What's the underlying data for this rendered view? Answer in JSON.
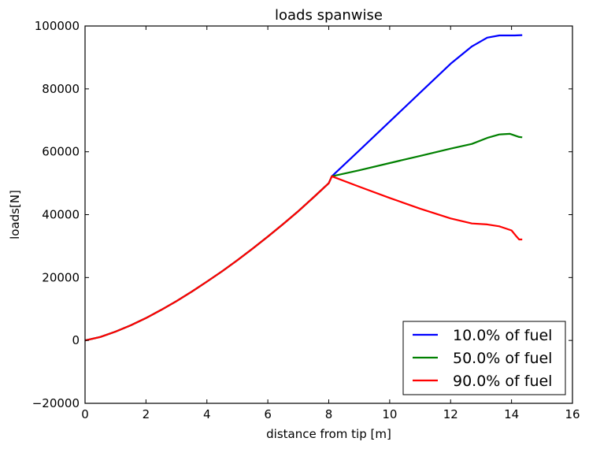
{
  "chart_data": {
    "type": "line",
    "title": "loads spanwise",
    "xlabel": "distance from tip [m]",
    "ylabel": "loads[N]",
    "xlim": [
      0,
      16
    ],
    "ylim": [
      -20000,
      100000
    ],
    "xticks": [
      0,
      2,
      4,
      6,
      8,
      10,
      12,
      14,
      16
    ],
    "yticks": [
      -20000,
      0,
      20000,
      40000,
      60000,
      80000,
      100000
    ],
    "xtick_labels": [
      "0",
      "2",
      "4",
      "6",
      "8",
      "10",
      "12",
      "14",
      "16"
    ],
    "ytick_labels": [
      "−20000",
      "0",
      "20000",
      "40000",
      "60000",
      "80000",
      "100000"
    ],
    "grid": false,
    "legend_position": "bottom-right",
    "series": [
      {
        "name": "10.0% of fuel",
        "color": "#0000ff",
        "x": [
          0,
          0.5,
          1,
          1.5,
          2,
          2.5,
          3,
          3.5,
          4,
          4.5,
          5,
          5.5,
          6,
          6.5,
          7,
          7.5,
          8,
          8.1,
          9,
          10,
          11,
          12,
          12.7,
          13.2,
          13.6,
          13.9,
          14.1,
          14.35
        ],
        "y": [
          0,
          1100,
          2800,
          4800,
          7100,
          9700,
          12500,
          15500,
          18700,
          22000,
          25500,
          29200,
          33000,
          37000,
          41100,
          45500,
          50000,
          52200,
          60400,
          69600,
          78800,
          88000,
          93500,
          96300,
          97000,
          97000,
          97000,
          97100
        ]
      },
      {
        "name": "50.0% of fuel",
        "color": "#008000",
        "x": [
          0,
          0.5,
          1,
          1.5,
          2,
          2.5,
          3,
          3.5,
          4,
          4.5,
          5,
          5.5,
          6,
          6.5,
          7,
          7.5,
          8,
          8.1,
          9,
          10,
          11,
          12,
          12.7,
          13.2,
          13.6,
          13.95,
          14.1,
          14.25,
          14.35
        ],
        "y": [
          0,
          1100,
          2800,
          4800,
          7100,
          9700,
          12500,
          15500,
          18700,
          22000,
          25500,
          29200,
          33000,
          37000,
          41100,
          45500,
          50000,
          52200,
          54100,
          56400,
          58700,
          61000,
          62500,
          64400,
          65500,
          65700,
          65200,
          64700,
          64600
        ]
      },
      {
        "name": "90.0% of fuel",
        "color": "#ff0000",
        "x": [
          0,
          0.5,
          1,
          1.5,
          2,
          2.5,
          3,
          3.5,
          4,
          4.5,
          5,
          5.5,
          6,
          6.5,
          7,
          7.5,
          8,
          8.1,
          9,
          10,
          11,
          12,
          12.7,
          13.2,
          13.6,
          14.0,
          14.15,
          14.25,
          14.35
        ],
        "y": [
          0,
          1100,
          2800,
          4800,
          7100,
          9700,
          12500,
          15500,
          18700,
          22000,
          25500,
          29200,
          33000,
          37000,
          41100,
          45500,
          50000,
          52200,
          48900,
          45300,
          41900,
          38800,
          37200,
          36900,
          36300,
          35000,
          33200,
          32100,
          32100
        ]
      }
    ]
  }
}
